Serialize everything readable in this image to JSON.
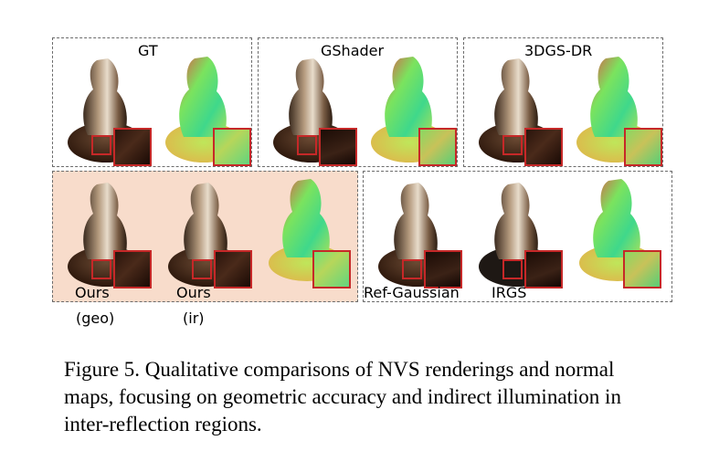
{
  "top_row": {
    "panels": [
      {
        "label": "GT"
      },
      {
        "label": "GShader"
      },
      {
        "label": "3DGS-DR"
      }
    ]
  },
  "bottom_row": {
    "ours_labels": [
      {
        "line1": "Ours",
        "line2": "(geo)"
      },
      {
        "line1": "Ours",
        "line2": "(ir)"
      }
    ],
    "baseline_labels": [
      "Ref-Gaussian",
      "IRGS"
    ]
  },
  "caption": "Figure 5.  Qualitative comparisons of NVS renderings and normal maps, focusing on geometric accuracy and indirect illumination in inter-reflection regions.",
  "colors": {
    "highlight_panel": "#f8dccb",
    "inset_border": "#c62828",
    "dashed_border": "#6b6b6b"
  }
}
